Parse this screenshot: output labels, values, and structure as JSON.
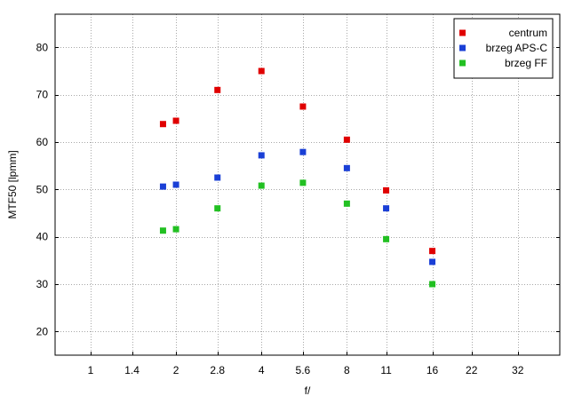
{
  "chart_data": {
    "type": "scatter",
    "xlabel": "f/",
    "ylabel": "MTF50 [lpmm]",
    "x_scale": "log2",
    "x_ticks": [
      1,
      1.4,
      2,
      2.8,
      4,
      5.6,
      8,
      11,
      16,
      22,
      32
    ],
    "x_tick_labels": [
      "1",
      "1.4",
      "2",
      "2.8",
      "4",
      "5.6",
      "8",
      "11",
      "16",
      "22",
      "32"
    ],
    "xlim": [
      0.75,
      45
    ],
    "ylim": [
      15,
      87
    ],
    "y_ticks": [
      20,
      30,
      40,
      50,
      60,
      70,
      80
    ],
    "grid": true,
    "legend_position": "top-right",
    "series": [
      {
        "name": "centrum",
        "color": "#e00000",
        "points": [
          [
            1.8,
            63.8
          ],
          [
            2,
            64.5
          ],
          [
            2.8,
            71.0
          ],
          [
            4,
            75.0
          ],
          [
            5.6,
            67.5
          ],
          [
            8,
            60.5
          ],
          [
            11,
            49.8
          ],
          [
            16,
            37.0
          ]
        ]
      },
      {
        "name": "brzeg APS-C",
        "color": "#1a3fd6",
        "points": [
          [
            1.8,
            50.6
          ],
          [
            2,
            51.0
          ],
          [
            2.8,
            52.5
          ],
          [
            4,
            57.2
          ],
          [
            5.6,
            57.9
          ],
          [
            8,
            54.5
          ],
          [
            11,
            46.0
          ],
          [
            16,
            34.7
          ]
        ]
      },
      {
        "name": "brzeg FF",
        "color": "#22c022",
        "points": [
          [
            1.8,
            41.3
          ],
          [
            2,
            41.6
          ],
          [
            2.8,
            46.0
          ],
          [
            4,
            50.8
          ],
          [
            5.6,
            51.4
          ],
          [
            8,
            47.0
          ],
          [
            11,
            39.5
          ],
          [
            16,
            30.0
          ]
        ]
      }
    ]
  }
}
